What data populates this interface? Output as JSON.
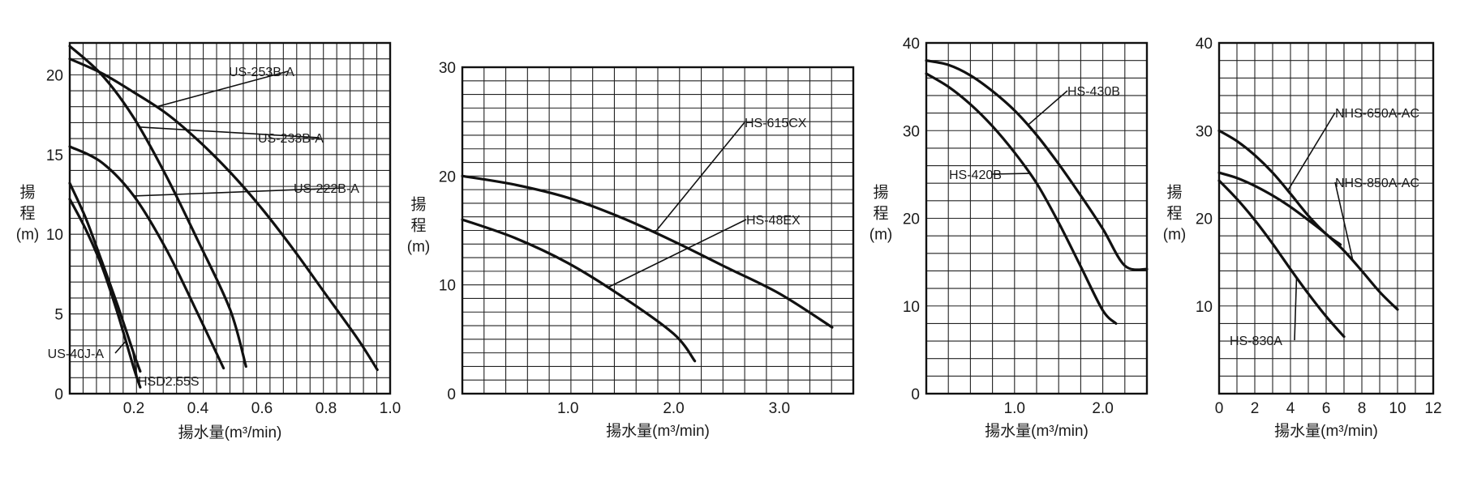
{
  "chart_data": [
    {
      "type": "line",
      "xlabel": "揚水量(m³/min)",
      "ylabel_lines": [
        "揚",
        "程",
        "(m)"
      ],
      "xlim": [
        0,
        1.0
      ],
      "ylim": [
        0,
        22
      ],
      "x_ticks": [
        {
          "v": 0.2,
          "label": "0.2"
        },
        {
          "v": 0.4,
          "label": "0.4"
        },
        {
          "v": 0.6,
          "label": "0.6"
        },
        {
          "v": 0.8,
          "label": "0.8"
        },
        {
          "v": 1.0,
          "label": "1.0"
        }
      ],
      "y_ticks": [
        {
          "v": 0,
          "label": "0"
        },
        {
          "v": 5,
          "label": "5"
        },
        {
          "v": 10,
          "label": "10"
        },
        {
          "v": 15,
          "label": "15"
        },
        {
          "v": 20,
          "label": "20"
        }
      ],
      "grid": true,
      "series": [
        {
          "name": "US-253B-A",
          "points": [
            [
              0,
              21.0
            ],
            [
              0.1,
              20.1
            ],
            [
              0.2,
              18.9
            ],
            [
              0.3,
              17.6
            ],
            [
              0.4,
              15.9
            ],
            [
              0.5,
              13.9
            ],
            [
              0.6,
              11.6
            ],
            [
              0.7,
              9.0
            ],
            [
              0.8,
              6.2
            ],
            [
              0.9,
              3.4
            ],
            [
              0.96,
              1.5
            ]
          ]
        },
        {
          "name": "US-233B-A",
          "points": [
            [
              0,
              21.8
            ],
            [
              0.1,
              20.0
            ],
            [
              0.2,
              17.3
            ],
            [
              0.3,
              13.7
            ],
            [
              0.4,
              9.6
            ],
            [
              0.5,
              5.3
            ],
            [
              0.55,
              1.7
            ]
          ]
        },
        {
          "name": "US-222B-A",
          "points": [
            [
              0,
              15.5
            ],
            [
              0.1,
              14.5
            ],
            [
              0.2,
              12.4
            ],
            [
              0.3,
              9.1
            ],
            [
              0.4,
              5.0
            ],
            [
              0.48,
              1.6
            ]
          ]
        },
        {
          "name": "US-40J-A",
          "points": [
            [
              0,
              12.2
            ],
            [
              0.05,
              10.3
            ],
            [
              0.1,
              8.0
            ],
            [
              0.15,
              5.0
            ],
            [
              0.2,
              1.6
            ],
            [
              0.22,
              0.4
            ]
          ]
        },
        {
          "name": "HSD2.55S",
          "points": [
            [
              0,
              13.2
            ],
            [
              0.05,
              11.0
            ],
            [
              0.1,
              8.3
            ],
            [
              0.15,
              5.5
            ],
            [
              0.2,
              2.5
            ],
            [
              0.22,
              1.4
            ]
          ]
        }
      ],
      "callouts": [
        {
          "label": "US-253B-A",
          "series": 0
        },
        {
          "label": "US-233B-A",
          "series": 1
        },
        {
          "label": "US-222B-A",
          "series": 2
        },
        {
          "label": "US-40J-A",
          "series": 3
        },
        {
          "label": "HSD2.55S",
          "series": 4
        }
      ]
    },
    {
      "type": "line",
      "xlabel": "揚水量(m³/min)",
      "ylabel_lines": [
        "揚",
        "程",
        "(m)"
      ],
      "xlim": [
        0,
        3.7
      ],
      "ylim": [
        0,
        30
      ],
      "x_ticks": [
        {
          "v": 1.0,
          "label": "1.0"
        },
        {
          "v": 2.0,
          "label": "2.0"
        },
        {
          "v": 3.0,
          "label": "3.0"
        }
      ],
      "y_ticks": [
        {
          "v": 0,
          "label": "0"
        },
        {
          "v": 10,
          "label": "10"
        },
        {
          "v": 20,
          "label": "20"
        },
        {
          "v": 30,
          "label": "30"
        }
      ],
      "grid": true,
      "series": [
        {
          "name": "HS-615CX",
          "points": [
            [
              0,
              20.0
            ],
            [
              0.5,
              19.2
            ],
            [
              1.0,
              18.0
            ],
            [
              1.5,
              16.2
            ],
            [
              2.0,
              14.0
            ],
            [
              2.5,
              11.6
            ],
            [
              3.0,
              9.2
            ],
            [
              3.5,
              6.1
            ]
          ]
        },
        {
          "name": "HS-48EX",
          "points": [
            [
              0,
              16.0
            ],
            [
              0.5,
              14.3
            ],
            [
              1.0,
              12.0
            ],
            [
              1.5,
              9.0
            ],
            [
              2.0,
              5.5
            ],
            [
              2.2,
              3.0
            ]
          ]
        }
      ],
      "callouts": [
        {
          "label": "HS-615CX",
          "series": 0
        },
        {
          "label": "HS-48EX",
          "series": 1
        }
      ]
    },
    {
      "type": "line",
      "xlabel": "揚水量(m³/min)",
      "ylabel_lines": [
        "揚",
        "程",
        "(m)"
      ],
      "xlim": [
        0,
        2.5
      ],
      "ylim": [
        0,
        40
      ],
      "x_ticks": [
        {
          "v": 1.0,
          "label": "1.0"
        },
        {
          "v": 2.0,
          "label": "2.0"
        }
      ],
      "y_ticks": [
        {
          "v": 0,
          "label": "0"
        },
        {
          "v": 10,
          "label": "10"
        },
        {
          "v": 20,
          "label": "20"
        },
        {
          "v": 30,
          "label": "30"
        },
        {
          "v": 40,
          "label": "40"
        }
      ],
      "grid": true,
      "series": [
        {
          "name": "HS-430B",
          "points": [
            [
              0,
              38.0
            ],
            [
              0.25,
              37.5
            ],
            [
              0.5,
              36.3
            ],
            [
              0.75,
              34.5
            ],
            [
              1.0,
              32.3
            ],
            [
              1.25,
              29.5
            ],
            [
              1.5,
              26.2
            ],
            [
              1.75,
              22.6
            ],
            [
              2.0,
              18.8
            ],
            [
              2.25,
              14.6
            ],
            [
              2.5,
              14.2
            ]
          ]
        },
        {
          "name": "HS-420B",
          "points": [
            [
              0,
              36.5
            ],
            [
              0.25,
              35.0
            ],
            [
              0.5,
              33.0
            ],
            [
              0.75,
              30.5
            ],
            [
              1.0,
              27.5
            ],
            [
              1.25,
              24.0
            ],
            [
              1.5,
              19.5
            ],
            [
              1.75,
              14.5
            ],
            [
              2.0,
              9.5
            ],
            [
              2.15,
              8.0
            ]
          ]
        }
      ],
      "callouts": [
        {
          "label": "HS-430B",
          "series": 0
        },
        {
          "label": "HS-420B",
          "series": 1
        }
      ]
    },
    {
      "type": "line",
      "xlabel": "揚水量(m³/min)",
      "ylabel_lines": [
        "揚",
        "程",
        "(m)"
      ],
      "xlim": [
        0,
        12
      ],
      "ylim": [
        0,
        40
      ],
      "x_ticks": [
        {
          "v": 0,
          "label": "0"
        },
        {
          "v": 2,
          "label": "2"
        },
        {
          "v": 4,
          "label": "4"
        },
        {
          "v": 6,
          "label": "6"
        },
        {
          "v": 8,
          "label": "8"
        },
        {
          "v": 10,
          "label": "10"
        },
        {
          "v": 12,
          "label": "12"
        }
      ],
      "y_ticks": [
        {
          "v": 10,
          "label": "10"
        },
        {
          "v": 20,
          "label": "20"
        },
        {
          "v": 30,
          "label": "30"
        },
        {
          "v": 40,
          "label": "40"
        }
      ],
      "grid": true,
      "series": [
        {
          "name": "NHS-650A-AC",
          "points": [
            [
              0,
              30.0
            ],
            [
              1,
              28.8
            ],
            [
              2,
              27.2
            ],
            [
              3,
              25.2
            ],
            [
              4,
              22.8
            ],
            [
              5,
              20.3
            ],
            [
              6,
              18.2
            ],
            [
              6.8,
              17.0
            ]
          ]
        },
        {
          "name": "NHS-850A-AC",
          "points": [
            [
              0,
              25.2
            ],
            [
              1,
              24.6
            ],
            [
              2,
              23.7
            ],
            [
              3,
              22.6
            ],
            [
              4,
              21.3
            ],
            [
              5,
              19.8
            ],
            [
              6,
              18.2
            ],
            [
              7,
              16.3
            ],
            [
              8,
              14.0
            ],
            [
              9,
              11.6
            ],
            [
              10,
              9.6
            ]
          ]
        },
        {
          "name": "HS-830A",
          "points": [
            [
              0,
              24.3
            ],
            [
              1,
              22.2
            ],
            [
              2,
              19.8
            ],
            [
              3,
              17.1
            ],
            [
              4,
              14.2
            ],
            [
              5,
              11.4
            ],
            [
              6,
              8.8
            ],
            [
              7,
              6.5
            ]
          ]
        }
      ],
      "callouts": [
        {
          "label": "NHS-650A-AC",
          "series": 0
        },
        {
          "label": "NHS-850A-AC",
          "series": 1
        },
        {
          "label": "HS-830A",
          "series": 2
        }
      ]
    }
  ]
}
